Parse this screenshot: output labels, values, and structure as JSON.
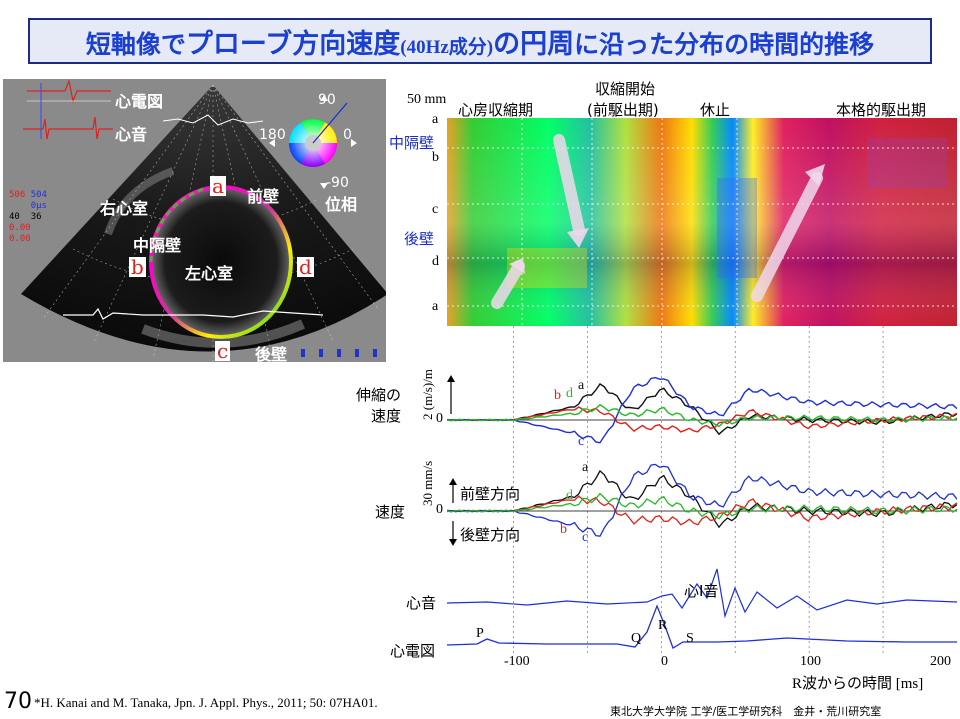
{
  "title": {
    "part1": "短軸像で",
    "part2": "プローブ方向速度",
    "part3": "(40Hz成分)",
    "part4": "の円周",
    "part5": "に沿った分布の時間的推移"
  },
  "us_image": {
    "ecg_label": "心電図",
    "pcg_label": "心音",
    "phase_label": "位相",
    "phase_ticks": [
      "90",
      "180",
      "0",
      "-90"
    ],
    "rv": "右心室",
    "septum": "中隔壁",
    "lv": "左心室",
    "anterior": "前壁",
    "posterior": "後壁",
    "points": [
      "a",
      "b",
      "c",
      "d"
    ],
    "readouts": [
      "506",
      "504",
      "0μs",
      "40",
      "36",
      "0.00",
      "0.00"
    ]
  },
  "heatmap": {
    "scale": "50 mm",
    "phases": [
      "心房収縮期",
      "収縮開始",
      "(前駆出期)",
      "休止",
      "本格的駆出期"
    ],
    "row_letters": [
      "a",
      "b",
      "c",
      "d",
      "a"
    ],
    "septum": "中隔壁",
    "posterior": "後壁"
  },
  "plots": {
    "strain_label_1": "伸縮の",
    "strain_label_2": "速度",
    "strain_unit": "2 (m/s)/m",
    "velocity_label": "速度",
    "velocity_unit": "30 mm/s",
    "anterior_dir": "前壁方向",
    "posterior_dir": "後壁方向",
    "zero": "0",
    "pcg_label": "心音",
    "s1_label": "心I音",
    "ecg_label": "心電図",
    "ecg_waves": [
      "P",
      "Q",
      "R",
      "S"
    ],
    "xlabel": "R波からの時間 [ms]",
    "xticks": [
      "-100",
      "0",
      "100",
      "200"
    ],
    "series_letters": [
      "a",
      "b",
      "c",
      "d"
    ]
  },
  "colors": {
    "a": "#111111",
    "b": "#e0201a",
    "c": "#1f2fd8",
    "d": "#22bb22",
    "title": "#1a3fd1"
  },
  "footer": {
    "page_number": "70",
    "citation": "*H. Kanai and M. Tanaka, Jpn. J. Appl. Phys., 2011; 50: 07HA01.",
    "lab": "東北大学大学院 工学/医工学研究科　金井・荒川研究室"
  },
  "chart_data": {
    "type": "line",
    "xlabel": "R波からの時間 [ms]",
    "xlim": [
      -145,
      200
    ],
    "series": [
      {
        "name": "a",
        "x": [
          -145,
          -100,
          -60,
          -40,
          -20,
          0,
          20,
          40,
          60,
          100,
          150,
          200
        ],
        "y": [
          0,
          0,
          0.6,
          1.6,
          0.4,
          1.4,
          0.6,
          -0.6,
          0.2,
          0,
          -0.1,
          0.3
        ]
      },
      {
        "name": "b",
        "x": [
          -145,
          -100,
          -60,
          -40,
          -20,
          0,
          20,
          40,
          60,
          100,
          150,
          200
        ],
        "y": [
          0,
          0,
          0.5,
          0.4,
          -0.4,
          -0.3,
          -0.5,
          -0.2,
          0.4,
          -0.3,
          0,
          0.2
        ]
      },
      {
        "name": "c",
        "x": [
          -145,
          -100,
          -60,
          -40,
          -20,
          0,
          20,
          40,
          60,
          100,
          150,
          200
        ],
        "y": [
          0,
          0,
          -0.6,
          -1.0,
          1.4,
          2.0,
          0.6,
          0.2,
          1.4,
          0.8,
          0.7,
          0.6
        ]
      },
      {
        "name": "d",
        "x": [
          -145,
          -100,
          -60,
          -40,
          -20,
          0,
          20,
          40,
          60,
          100,
          150,
          200
        ],
        "y": [
          0,
          0,
          0.3,
          0.6,
          0.2,
          0.5,
          0,
          -0.2,
          0.1,
          0.1,
          0,
          0.1
        ]
      }
    ]
  }
}
